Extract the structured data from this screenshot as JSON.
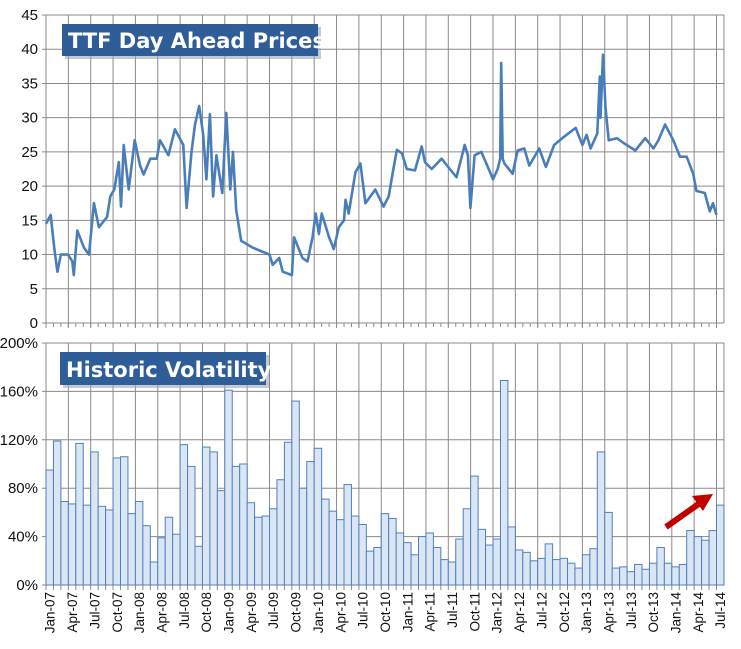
{
  "colors": {
    "price_line": "#4a7ebb",
    "bar_fill": "#dbe6f5",
    "bar_stroke": "#4f81bd",
    "grid": "#8a8a8a",
    "title_box": "#2f5d97",
    "arrow": "#c00000"
  },
  "chart_data": [
    {
      "type": "line",
      "title": "TTF Day Ahead Prices",
      "ylim": [
        0,
        45
      ],
      "yticks": [
        "0",
        "5",
        "10",
        "15",
        "20",
        "25",
        "30",
        "35",
        "40",
        "45"
      ],
      "xlim": [
        "2007-01",
        "2014-07"
      ],
      "grid": true,
      "legend": "none",
      "points": [
        [
          "2007-01-01",
          14.5
        ],
        [
          "2007-01-20",
          15.8
        ],
        [
          "2007-02-04",
          11
        ],
        [
          "2007-02-17",
          7.5
        ],
        [
          "2007-03-01",
          10
        ],
        [
          "2007-03-30",
          10
        ],
        [
          "2007-04-17",
          9
        ],
        [
          "2007-04-23",
          7
        ],
        [
          "2007-05-07",
          13.5
        ],
        [
          "2007-06-04",
          11
        ],
        [
          "2007-06-24",
          10
        ],
        [
          "2007-07-14",
          17.5
        ],
        [
          "2007-08-04",
          14
        ],
        [
          "2007-09-07",
          15.5
        ],
        [
          "2007-09-20",
          18.5
        ],
        [
          "2007-10-06",
          19.5
        ],
        [
          "2007-10-24",
          23.5
        ],
        [
          "2007-11-03",
          17
        ],
        [
          "2007-11-14",
          26
        ],
        [
          "2007-12-04",
          19.5
        ],
        [
          "2007-12-28",
          26.7
        ],
        [
          "2008-01-20",
          23
        ],
        [
          "2008-02-04",
          21.7
        ],
        [
          "2008-03-01",
          24
        ],
        [
          "2008-03-27",
          24
        ],
        [
          "2008-04-10",
          26.7
        ],
        [
          "2008-05-14",
          24.5
        ],
        [
          "2008-06-10",
          28.3
        ],
        [
          "2008-07-14",
          26
        ],
        [
          "2008-07-27",
          16.8
        ],
        [
          "2008-08-17",
          25
        ],
        [
          "2008-09-01",
          29
        ],
        [
          "2008-09-18",
          31.7
        ],
        [
          "2008-10-04",
          27.5
        ],
        [
          "2008-10-17",
          21
        ],
        [
          "2008-11-01",
          30.5
        ],
        [
          "2008-11-14",
          18.5
        ],
        [
          "2008-11-27",
          24.5
        ],
        [
          "2008-12-21",
          19
        ],
        [
          "2009-01-07",
          30.7
        ],
        [
          "2009-01-23",
          19.5
        ],
        [
          "2009-02-04",
          25
        ],
        [
          "2009-02-17",
          16.5
        ],
        [
          "2009-03-07",
          12
        ],
        [
          "2009-04-24",
          11
        ],
        [
          "2009-07-01",
          10
        ],
        [
          "2009-07-14",
          8.5
        ],
        [
          "2009-08-10",
          9.5
        ],
        [
          "2009-08-24",
          7.5
        ],
        [
          "2009-10-01",
          7
        ],
        [
          "2009-10-10",
          12.5
        ],
        [
          "2009-11-14",
          9.5
        ],
        [
          "2009-12-04",
          9
        ],
        [
          "2009-12-24",
          12.5
        ],
        [
          "2010-01-07",
          16
        ],
        [
          "2010-01-20",
          13
        ],
        [
          "2010-02-01",
          16
        ],
        [
          "2010-03-01",
          12.5
        ],
        [
          "2010-03-20",
          10.8
        ],
        [
          "2010-04-10",
          14
        ],
        [
          "2010-05-01",
          15
        ],
        [
          "2010-05-07",
          18
        ],
        [
          "2010-05-20",
          16
        ],
        [
          "2010-06-17",
          22
        ],
        [
          "2010-07-07",
          23.3
        ],
        [
          "2010-07-27",
          17.5
        ],
        [
          "2010-09-07",
          19.5
        ],
        [
          "2010-10-10",
          17
        ],
        [
          "2010-11-01",
          18.5
        ],
        [
          "2010-11-20",
          22.5
        ],
        [
          "2010-12-04",
          25.3
        ],
        [
          "2010-12-24",
          24.8
        ],
        [
          "2011-01-14",
          22.5
        ],
        [
          "2011-02-17",
          22.3
        ],
        [
          "2011-03-14",
          25.8
        ],
        [
          "2011-03-27",
          23.5
        ],
        [
          "2011-04-24",
          22.5
        ],
        [
          "2011-06-04",
          24
        ],
        [
          "2011-07-07",
          22.5
        ],
        [
          "2011-08-04",
          21.3
        ],
        [
          "2011-09-07",
          26
        ],
        [
          "2011-09-20",
          24.5
        ],
        [
          "2011-09-30",
          16.8
        ],
        [
          "2011-10-17",
          24.5
        ],
        [
          "2011-11-14",
          25
        ],
        [
          "2011-12-10",
          22.8
        ],
        [
          "2012-01-01",
          21
        ],
        [
          "2012-01-20",
          22.5
        ],
        [
          "2012-01-30",
          24
        ],
        [
          "2012-02-04",
          38
        ],
        [
          "2012-02-10",
          24
        ],
        [
          "2012-02-17",
          23.3
        ],
        [
          "2012-03-20",
          21.8
        ],
        [
          "2012-04-10",
          25.2
        ],
        [
          "2012-05-07",
          25.5
        ],
        [
          "2012-05-27",
          23
        ],
        [
          "2012-07-07",
          25.5
        ],
        [
          "2012-08-04",
          22.8
        ],
        [
          "2012-09-07",
          26
        ],
        [
          "2012-10-17",
          27.2
        ],
        [
          "2012-12-04",
          28.5
        ],
        [
          "2013-01-01",
          26
        ],
        [
          "2013-01-18",
          27.5
        ],
        [
          "2013-02-04",
          25.5
        ],
        [
          "2013-03-01",
          27.7
        ],
        [
          "2013-03-11",
          36
        ],
        [
          "2013-03-14",
          30
        ],
        [
          "2013-03-24",
          39.2
        ],
        [
          "2013-04-04",
          31.5
        ],
        [
          "2013-04-17",
          26.7
        ],
        [
          "2013-05-20",
          27
        ],
        [
          "2013-06-17",
          26.3
        ],
        [
          "2013-08-04",
          25.2
        ],
        [
          "2013-09-14",
          27
        ],
        [
          "2013-10-17",
          25.5
        ],
        [
          "2013-11-07",
          26.7
        ],
        [
          "2013-12-04",
          29
        ],
        [
          "2014-01-07",
          26.7
        ],
        [
          "2014-02-04",
          24.3
        ],
        [
          "2014-03-01",
          24.3
        ],
        [
          "2014-03-27",
          21.8
        ],
        [
          "2014-04-10",
          19.3
        ],
        [
          "2014-05-14",
          19
        ],
        [
          "2014-06-04",
          16.3
        ],
        [
          "2014-06-17",
          17.5
        ],
        [
          "2014-07-01",
          15.8
        ]
      ]
    },
    {
      "type": "bar",
      "title": "Historic Volatility",
      "ylim": [
        0,
        200
      ],
      "yticks": [
        "0%",
        "40%",
        "80%",
        "120%",
        "160%",
        "200%"
      ],
      "grid": true,
      "legend": "none",
      "start_month": "2007-01",
      "values": [
        95,
        119,
        69,
        67,
        117,
        66,
        110,
        65,
        62,
        105,
        106,
        59,
        69,
        49,
        19,
        39,
        56,
        42,
        116,
        98,
        32,
        114,
        110,
        78,
        161,
        98,
        100,
        68,
        56,
        57,
        63,
        87,
        118,
        152,
        80,
        102,
        113,
        71,
        61,
        54,
        83,
        57,
        50,
        28,
        31,
        59,
        55,
        43,
        35,
        25,
        40,
        43,
        31,
        21,
        19,
        38,
        63,
        90,
        46,
        33,
        38,
        169,
        48,
        29,
        27,
        20,
        22,
        34,
        21,
        22,
        18,
        14,
        25,
        30,
        110,
        60,
        14,
        15,
        11,
        17,
        13,
        18,
        31,
        18,
        15,
        17,
        45,
        40,
        37,
        45,
        66
      ],
      "xticks": [
        "Jan-07",
        "Apr-07",
        "Jul-07",
        "Oct-07",
        "Jan-08",
        "Apr-08",
        "Jul-08",
        "Oct-08",
        "Jan-09",
        "Apr-09",
        "Jul-09",
        "Oct-09",
        "Jan-10",
        "Apr-10",
        "Jul-10",
        "Oct-10",
        "Jan-11",
        "Apr-11",
        "Jul-11",
        "Oct-11",
        "Jan-12",
        "Apr-12",
        "Jul-12",
        "Oct-12",
        "Jan-13",
        "Apr-13",
        "Jul-13",
        "Oct-13",
        "Jan-14",
        "Apr-14",
        "Jul-14"
      ],
      "annotation": "red-arrow-up-right"
    }
  ]
}
